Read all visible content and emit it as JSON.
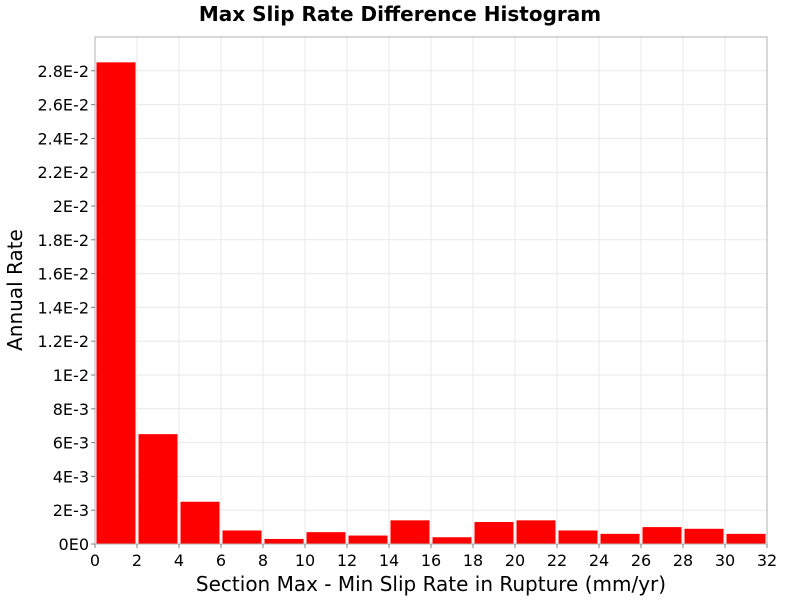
{
  "chart_data": {
    "type": "bar",
    "title": "Max Slip Rate Difference Histogram",
    "xlabel": "Section Max - Min Slip Rate in Rupture (mm/yr)",
    "ylabel": "Annual Rate",
    "xlim": [
      0,
      32
    ],
    "ylim": [
      0,
      0.03
    ],
    "bin_width": 2,
    "x_ticks": [
      "0",
      "2",
      "4",
      "6",
      "8",
      "10",
      "12",
      "14",
      "16",
      "18",
      "20",
      "22",
      "24",
      "26",
      "28",
      "30",
      "32"
    ],
    "y_ticks": [
      "0E0",
      "2E-3",
      "4E-3",
      "6E-3",
      "8E-3",
      "1E-2",
      "1.2E-2",
      "1.4E-2",
      "1.6E-2",
      "1.8E-2",
      "2E-2",
      "2.2E-2",
      "2.4E-2",
      "2.6E-2",
      "2.8E-2"
    ],
    "bins": [
      {
        "x": 1,
        "value": 0.0285
      },
      {
        "x": 3,
        "value": 0.0065
      },
      {
        "x": 5,
        "value": 0.0025
      },
      {
        "x": 7,
        "value": 0.0008
      },
      {
        "x": 9,
        "value": 0.0003
      },
      {
        "x": 11,
        "value": 0.0007
      },
      {
        "x": 13,
        "value": 0.0005
      },
      {
        "x": 15,
        "value": 0.0014
      },
      {
        "x": 17,
        "value": 0.0004
      },
      {
        "x": 19,
        "value": 0.0013
      },
      {
        "x": 21,
        "value": 0.0014
      },
      {
        "x": 23,
        "value": 0.0008
      },
      {
        "x": 25,
        "value": 0.0006
      },
      {
        "x": 27,
        "value": 0.001
      },
      {
        "x": 29,
        "value": 0.0009
      },
      {
        "x": 31,
        "value": 0.0006
      }
    ],
    "grid": true,
    "colors": {
      "bar": "#ff0000",
      "grid": "#e8e8e8",
      "axis": "#b0b0b0",
      "background": "#ffffff"
    }
  }
}
